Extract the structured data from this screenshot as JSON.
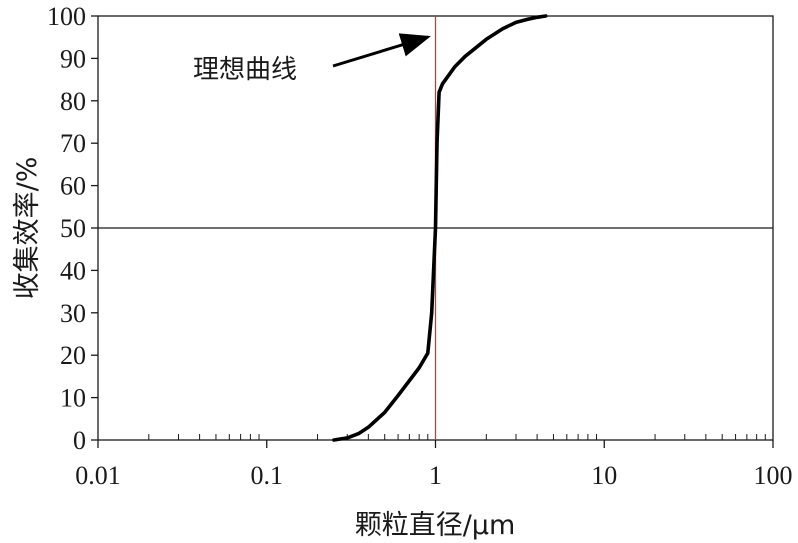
{
  "chart_data": {
    "type": "line",
    "title": "",
    "xlabel": "颗粒直径/μm",
    "ylabel": "收集效率/%",
    "x_scale": "log",
    "xlim": [
      0.01,
      100
    ],
    "ylim": [
      0,
      100
    ],
    "x_tick_labels": [
      "0.01",
      "0.1",
      "1",
      "10",
      "100"
    ],
    "x_tick_values": [
      0.01,
      0.1,
      1,
      10,
      100
    ],
    "y_tick_labels": [
      "0",
      "10",
      "20",
      "30",
      "40",
      "50",
      "60",
      "70",
      "80",
      "90",
      "100"
    ],
    "y_tick_values": [
      0,
      10,
      20,
      30,
      40,
      50,
      60,
      70,
      80,
      90,
      100
    ],
    "grid": false,
    "reference_line_y": 50,
    "ideal_cut_x": 1,
    "annotation": "理想曲线",
    "colors": {
      "curve": "#000000",
      "ideal_line": "#e03020",
      "axes": "#1a1a1a",
      "reference_line": "#1a1a1a"
    },
    "series": [
      {
        "x": [
          0.25,
          0.3,
          0.35,
          0.4,
          0.5,
          0.6,
          0.7,
          0.8,
          0.9,
          0.95,
          1.0,
          1.02,
          1.05,
          1.1,
          1.3,
          1.5,
          2.0,
          2.5,
          3.0,
          3.5,
          4.0,
          4.5
        ],
        "values": [
          0,
          0.5,
          1.5,
          3,
          6.5,
          10.5,
          14,
          17,
          20.5,
          30,
          50,
          70,
          82,
          84,
          88,
          90.5,
          94.5,
          97,
          98.5,
          99.2,
          99.7,
          100
        ]
      }
    ]
  }
}
